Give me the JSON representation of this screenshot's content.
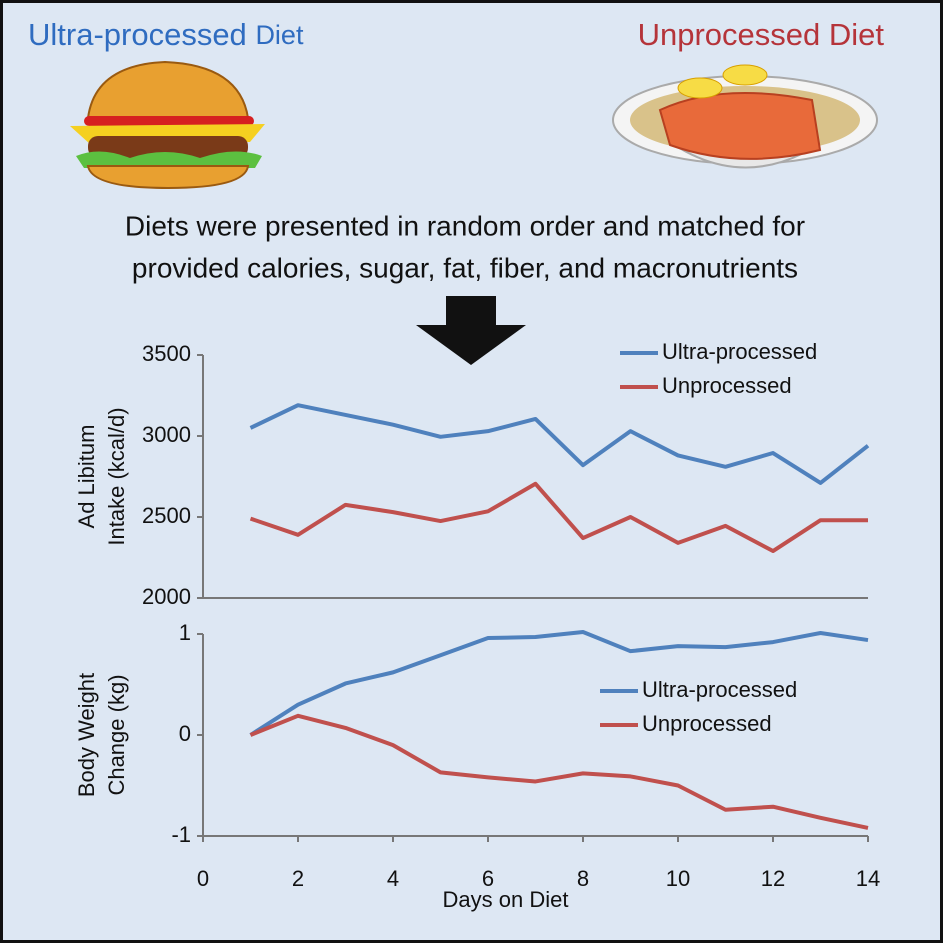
{
  "header": {
    "left": {
      "main": "Ultra-processed",
      "suffix": "Diet"
    },
    "right": "Unprocessed Diet",
    "note": [
      "Diets were presented in random order and matched for",
      "provided calories, sugar, fat, fiber, and macronutrients"
    ]
  },
  "chart_data": [
    {
      "type": "line",
      "ylabel": [
        "Ad Libitum",
        "Intake (kcal/d)"
      ],
      "x": [
        1,
        2,
        3,
        4,
        5,
        6,
        7,
        8,
        9,
        10,
        11,
        12,
        13,
        14
      ],
      "series": [
        {
          "name": "Ultra-processed",
          "color": "#4f81bd",
          "values": [
            3050,
            3190,
            3130,
            3070,
            2995,
            3030,
            3105,
            2820,
            3030,
            2880,
            2810,
            2895,
            2710,
            2940
          ]
        },
        {
          "name": "Unprocessed",
          "color": "#c0504d",
          "values": [
            2490,
            2390,
            2575,
            2530,
            2475,
            2535,
            2705,
            2370,
            2500,
            2340,
            2445,
            2290,
            2480,
            2480
          ]
        }
      ],
      "xlim": [
        0,
        14
      ],
      "ylim": [
        2000,
        3500
      ],
      "yticks": [
        2000,
        2500,
        3000,
        3500
      ],
      "legend": "upper right"
    },
    {
      "type": "line",
      "ylabel": [
        "Body Weight",
        "Change (kg)"
      ],
      "xlabel": "Days on Diet",
      "x": [
        1,
        2,
        3,
        4,
        5,
        6,
        7,
        8,
        9,
        10,
        11,
        12,
        13,
        14
      ],
      "series": [
        {
          "name": "Ultra-processed",
          "color": "#4f81bd",
          "values": [
            0,
            0.3,
            0.51,
            0.62,
            0.79,
            0.96,
            0.97,
            1.02,
            0.83,
            0.88,
            0.87,
            0.92,
            1.01,
            0.94
          ]
        },
        {
          "name": "Unprocessed",
          "color": "#c0504d",
          "values": [
            0,
            0.19,
            0.07,
            -0.1,
            -0.37,
            -0.42,
            -0.46,
            -0.38,
            -0.41,
            -0.5,
            -0.74,
            -0.71,
            -0.82,
            -0.92
          ]
        }
      ],
      "xlim": [
        0,
        14
      ],
      "xticks": [
        0,
        2,
        4,
        6,
        8,
        10,
        12,
        14
      ],
      "ylim": [
        -1,
        1
      ],
      "yticks": [
        -1,
        0,
        1
      ],
      "legend": "center right"
    }
  ]
}
